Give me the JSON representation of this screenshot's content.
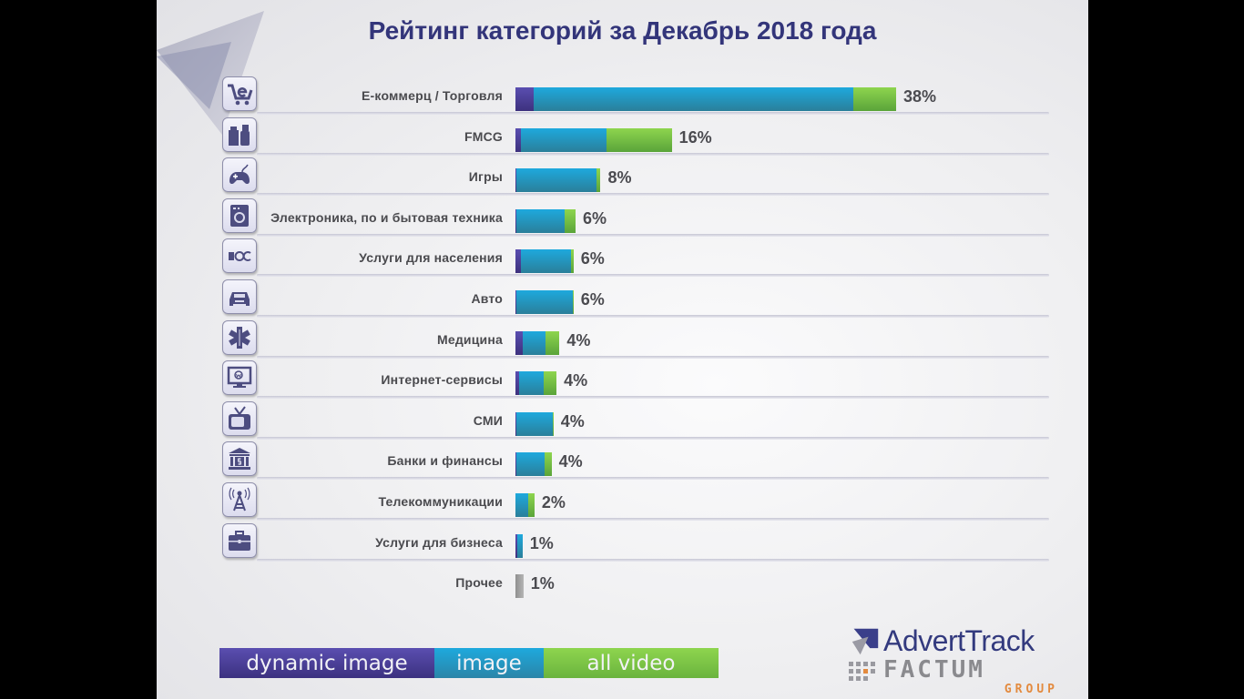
{
  "slide": {
    "title": "Рейтинг категорий за Декабрь 2018 года",
    "logo": {
      "brand": "AdvertTrack",
      "company": "FACTUM",
      "sub": "GROUP"
    }
  },
  "colors": {
    "dynamic_image": "#4a3f99",
    "image": "#1ea3d4",
    "all_video": "#7cc947",
    "other": "#9a9a9a",
    "title": "#33357a"
  },
  "chart_data": {
    "type": "bar",
    "orientation": "horizontal",
    "stacked": true,
    "title": "Рейтинг категорий за Декабрь 2018 года",
    "xlabel": "",
    "ylabel": "",
    "unit": "%",
    "xlim": [
      0,
      40
    ],
    "grid": false,
    "legend_position": "bottom-left",
    "series_names": [
      "dynamic image",
      "image",
      "all video"
    ],
    "categories": [
      {
        "label": "Е-коммерц / Торговля",
        "icon": "shopping-cart-icon",
        "total_label": "38%",
        "dynamic_image": 1.8,
        "image": 31.9,
        "all_video": 4.3
      },
      {
        "label": "FMCG",
        "icon": "household-products-icon",
        "total_label": "16%",
        "dynamic_image": 0.5,
        "image": 8.6,
        "all_video": 6.5
      },
      {
        "label": "Игры",
        "icon": "gamepad-icon",
        "total_label": "8%",
        "dynamic_image": 0.1,
        "image": 8.0,
        "all_video": 0.4
      },
      {
        "label": "Электроника, по и бытовая техника",
        "icon": "washing-machine-icon",
        "total_label": "6%",
        "dynamic_image": 0.1,
        "image": 4.8,
        "all_video": 1.1
      },
      {
        "label": "Услуги для населения",
        "icon": "b2c-icon",
        "total_label": "6%",
        "dynamic_image": 0.5,
        "image": 5.0,
        "all_video": 0.3
      },
      {
        "label": "Авто",
        "icon": "car-icon",
        "total_label": "6%",
        "dynamic_image": 0.1,
        "image": 5.6,
        "all_video": 0.1
      },
      {
        "label": "Медицина",
        "icon": "medical-star-icon",
        "total_label": "4%",
        "dynamic_image": 0.7,
        "image": 2.3,
        "all_video": 1.4
      },
      {
        "label": "Интернет-сервисы",
        "icon": "web-monitor-icon",
        "total_label": "4%",
        "dynamic_image": 0.4,
        "image": 2.4,
        "all_video": 1.3
      },
      {
        "label": "СМИ",
        "icon": "tv-icon",
        "total_label": "4%",
        "dynamic_image": 0.1,
        "image": 3.6,
        "all_video": 0.1
      },
      {
        "label": "Банки и финансы",
        "icon": "bank-icon",
        "total_label": "4%",
        "dynamic_image": 0.1,
        "image": 2.8,
        "all_video": 0.7
      },
      {
        "label": "Телекоммуникации",
        "icon": "antenna-tower-icon",
        "total_label": "2%",
        "dynamic_image": 0.0,
        "image": 1.3,
        "all_video": 0.6
      },
      {
        "label": "Услуги для бизнеса",
        "icon": "briefcase-icon",
        "total_label": "1%",
        "dynamic_image": 0.2,
        "image": 0.5,
        "all_video": 0.0
      },
      {
        "label": "Прочее",
        "icon": "",
        "total_label": "1%",
        "other": 0.8
      }
    ]
  }
}
